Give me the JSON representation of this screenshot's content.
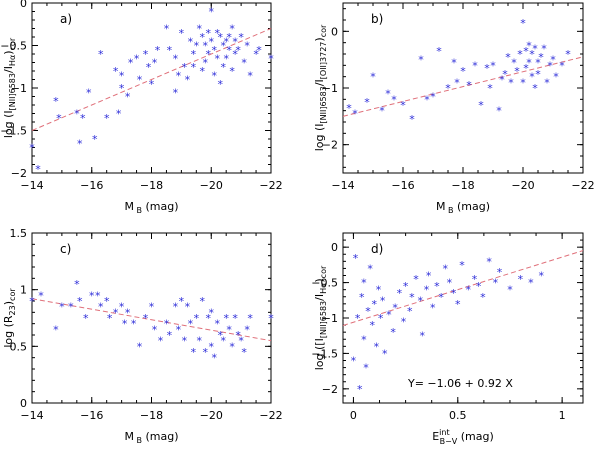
{
  "colors": {
    "points": "#2b2bd8",
    "fit": "#e0707a",
    "axes": "#000000"
  },
  "chart_data": [
    {
      "type": "scatter",
      "panel": "a)",
      "xlabel_main": "M",
      "xlabel_sub": "B",
      "xlabel_unit": "(mag)",
      "ylabel_parts": [
        "log  (I",
        "[NII]6583",
        "/I",
        "Hα",
        ")",
        "cor"
      ],
      "xlim": [
        -14,
        -22
      ],
      "ylim": [
        -2,
        0
      ],
      "xticks": [
        -14,
        -16,
        -18,
        -20,
        -22
      ],
      "yticks": [
        -2,
        -1.5,
        -1,
        -0.5,
        0
      ],
      "marker": "*",
      "fit_line": [
        [
          -14,
          -1.5
        ],
        [
          -22,
          -0.3
        ]
      ],
      "x": [
        -14.0,
        -14.2,
        -14.8,
        -14.9,
        -15.5,
        -15.6,
        -15.7,
        -15.9,
        -16.1,
        -16.3,
        -16.5,
        -16.8,
        -16.9,
        -17.0,
        -17.0,
        -17.2,
        -17.3,
        -17.5,
        -17.6,
        -17.8,
        -17.9,
        -18.0,
        -18.1,
        -18.2,
        -18.5,
        -18.6,
        -18.8,
        -18.8,
        -18.9,
        -19.0,
        -19.1,
        -19.2,
        -19.3,
        -19.4,
        -19.4,
        -19.5,
        -19.6,
        -19.7,
        -19.7,
        -19.8,
        -19.8,
        -19.9,
        -19.9,
        -20.0,
        -20.0,
        -20.1,
        -20.1,
        -20.2,
        -20.2,
        -20.3,
        -20.3,
        -20.4,
        -20.4,
        -20.5,
        -20.5,
        -20.6,
        -20.6,
        -20.7,
        -20.7,
        -20.8,
        -20.8,
        -20.9,
        -21.0,
        -21.1,
        -21.2,
        -21.3,
        -21.5,
        -21.6,
        -22.0
      ],
      "y": [
        -1.7,
        -1.95,
        -1.15,
        -1.35,
        -1.3,
        -1.65,
        -1.35,
        -1.05,
        -1.6,
        -0.6,
        -1.35,
        -0.8,
        -1.3,
        -0.85,
        -1.0,
        -1.1,
        -0.7,
        -0.65,
        -0.9,
        -0.6,
        -0.75,
        -0.95,
        -0.7,
        -0.55,
        -0.3,
        -0.55,
        -0.65,
        -1.05,
        -0.85,
        -0.35,
        -0.75,
        -0.9,
        -0.45,
        -0.6,
        -0.75,
        -0.5,
        -0.3,
        -0.4,
        -0.8,
        -0.5,
        -0.7,
        -0.35,
        -0.6,
        -0.1,
        -0.45,
        -0.55,
        -0.85,
        -0.35,
        -0.65,
        -0.4,
        -0.95,
        -0.5,
        -0.75,
        -0.45,
        -0.65,
        -0.4,
        -0.55,
        -0.3,
        -0.8,
        -0.45,
        -0.6,
        -0.55,
        -0.4,
        -0.7,
        -0.5,
        -0.85,
        -0.6,
        -0.55,
        -0.65
      ]
    },
    {
      "type": "scatter",
      "panel": "b)",
      "xlabel_main": "M",
      "xlabel_sub": "B",
      "xlabel_unit": "(mag)",
      "ylabel_parts": [
        "log  (I",
        "[NII]6583",
        "/I",
        "[OII]3727",
        ")",
        "cor"
      ],
      "xlim": [
        -14,
        -22
      ],
      "ylim": [
        -2.5,
        0.5
      ],
      "xticks": [
        -14,
        -16,
        -18,
        -20,
        -22
      ],
      "yticks": [
        -2,
        -1,
        0
      ],
      "marker": "*",
      "fit_line": [
        [
          -14,
          -1.5
        ],
        [
          -22,
          -0.45
        ]
      ],
      "x": [
        -14.2,
        -14.4,
        -14.8,
        -15.0,
        -15.3,
        -15.5,
        -15.7,
        -16.0,
        -16.3,
        -16.6,
        -16.8,
        -17.0,
        -17.2,
        -17.5,
        -17.7,
        -17.8,
        -18.0,
        -18.2,
        -18.4,
        -18.6,
        -18.8,
        -18.9,
        -19.0,
        -19.2,
        -19.3,
        -19.4,
        -19.5,
        -19.6,
        -19.7,
        -19.8,
        -19.9,
        -20.0,
        -20.0,
        -20.1,
        -20.1,
        -20.2,
        -20.2,
        -20.3,
        -20.3,
        -20.4,
        -20.4,
        -20.5,
        -20.5,
        -20.6,
        -20.7,
        -20.8,
        -20.9,
        -21.0,
        -21.1,
        -21.3,
        -21.5
      ],
      "y": [
        -1.35,
        -1.45,
        -1.25,
        -0.8,
        -1.4,
        -1.1,
        -1.2,
        -1.3,
        -1.55,
        -0.5,
        -1.2,
        -1.15,
        -0.35,
        -1.0,
        -0.55,
        -0.9,
        -0.7,
        -0.95,
        -0.6,
        -1.3,
        -0.65,
        -1.0,
        -0.6,
        -1.4,
        -0.85,
        -0.75,
        -0.45,
        -0.9,
        -0.55,
        -0.7,
        -0.4,
        0.15,
        -0.9,
        -0.35,
        -0.65,
        -0.25,
        -0.55,
        -0.4,
        -0.8,
        -0.3,
        -1.0,
        -0.55,
        -0.75,
        -0.45,
        -0.3,
        -0.9,
        -0.6,
        -0.5,
        -0.8,
        -0.6,
        -0.4
      ]
    },
    {
      "type": "scatter",
      "panel": "c)",
      "xlabel_main": "M",
      "xlabel_sub": "B",
      "xlabel_unit": "(mag)",
      "ylabel_parts": [
        "log (R",
        "23",
        ")",
        "cor"
      ],
      "xlim": [
        -14,
        -22
      ],
      "ylim": [
        0,
        1.5
      ],
      "xticks": [
        -14,
        -16,
        -18,
        -20,
        -22
      ],
      "yticks": [
        0,
        0.5,
        1,
        1.5
      ],
      "marker": "*",
      "fit_line": [
        [
          -14,
          0.92
        ],
        [
          -22,
          0.55
        ]
      ],
      "x": [
        -14.0,
        -14.3,
        -14.8,
        -15.0,
        -15.3,
        -15.5,
        -15.6,
        -15.8,
        -16.0,
        -16.2,
        -16.3,
        -16.5,
        -16.6,
        -16.8,
        -17.0,
        -17.1,
        -17.2,
        -17.4,
        -17.6,
        -17.8,
        -18.0,
        -18.1,
        -18.3,
        -18.5,
        -18.6,
        -18.8,
        -18.9,
        -19.0,
        -19.1,
        -19.2,
        -19.3,
        -19.4,
        -19.5,
        -19.6,
        -19.7,
        -19.8,
        -19.9,
        -20.0,
        -20.0,
        -20.1,
        -20.2,
        -20.3,
        -20.4,
        -20.5,
        -20.6,
        -20.7,
        -20.8,
        -20.9,
        -21.0,
        -21.1,
        -21.2,
        -21.3,
        -22.0
      ],
      "y": [
        0.9,
        0.95,
        0.65,
        0.85,
        0.85,
        1.05,
        0.9,
        0.75,
        0.95,
        0.95,
        0.85,
        0.9,
        0.75,
        0.8,
        0.85,
        0.7,
        0.8,
        0.7,
        0.5,
        0.75,
        0.85,
        0.65,
        0.55,
        0.7,
        0.6,
        0.85,
        0.65,
        0.9,
        0.55,
        0.85,
        0.7,
        0.45,
        0.75,
        0.55,
        0.9,
        0.45,
        0.75,
        0.5,
        0.8,
        0.4,
        0.7,
        0.6,
        0.55,
        0.75,
        0.65,
        0.5,
        0.75,
        0.6,
        0.55,
        0.45,
        0.65,
        0.75,
        0.75
      ]
    },
    {
      "type": "scatter",
      "panel": "d)",
      "xlabel_main": "E",
      "xlabel_sup": "int",
      "xlabel_sub": "B−V",
      "xlabel_unit": "(mag)",
      "ylabel_parts": [
        "log ([I",
        "[NII]6583",
        "/I",
        "Hα",
        ")",
        "cor"
      ],
      "xlim": [
        -0.05,
        1.1
      ],
      "ylim": [
        -2.2,
        0.2
      ],
      "xticks": [
        0,
        0.5,
        1
      ],
      "yticks": [
        -2,
        -1.5,
        -1,
        -0.5,
        0
      ],
      "marker": "*",
      "fit_line": [
        [
          -0.05,
          -1.106
        ],
        [
          1.1,
          -0.048
        ]
      ],
      "annotation": "Y= −1.06 + 0.92 X",
      "x": [
        0.0,
        0.01,
        0.02,
        0.03,
        0.04,
        0.05,
        0.05,
        0.06,
        0.07,
        0.08,
        0.09,
        0.1,
        0.11,
        0.12,
        0.13,
        0.14,
        0.15,
        0.17,
        0.19,
        0.2,
        0.22,
        0.24,
        0.25,
        0.27,
        0.28,
        0.3,
        0.32,
        0.33,
        0.35,
        0.36,
        0.38,
        0.4,
        0.42,
        0.44,
        0.46,
        0.48,
        0.5,
        0.52,
        0.55,
        0.58,
        0.6,
        0.62,
        0.65,
        0.68,
        0.7,
        0.75,
        0.8,
        0.85,
        0.9
      ],
      "y": [
        -1.6,
        -0.15,
        -1.0,
        -2.0,
        -0.7,
        -1.3,
        -0.5,
        -1.7,
        -0.9,
        -0.3,
        -1.1,
        -0.8,
        -1.4,
        -0.6,
        -1.0,
        -0.75,
        -1.5,
        -0.95,
        -1.2,
        -0.85,
        -0.65,
        -1.05,
        -0.55,
        -0.9,
        -0.7,
        -0.45,
        -0.75,
        -1.25,
        -0.6,
        -0.4,
        -0.85,
        -0.55,
        -0.7,
        -0.3,
        -0.5,
        -0.65,
        -0.8,
        -0.25,
        -0.6,
        -0.45,
        -0.55,
        -0.7,
        -0.2,
        -0.5,
        -0.35,
        -0.6,
        -0.45,
        -0.5,
        -0.4
      ]
    }
  ]
}
